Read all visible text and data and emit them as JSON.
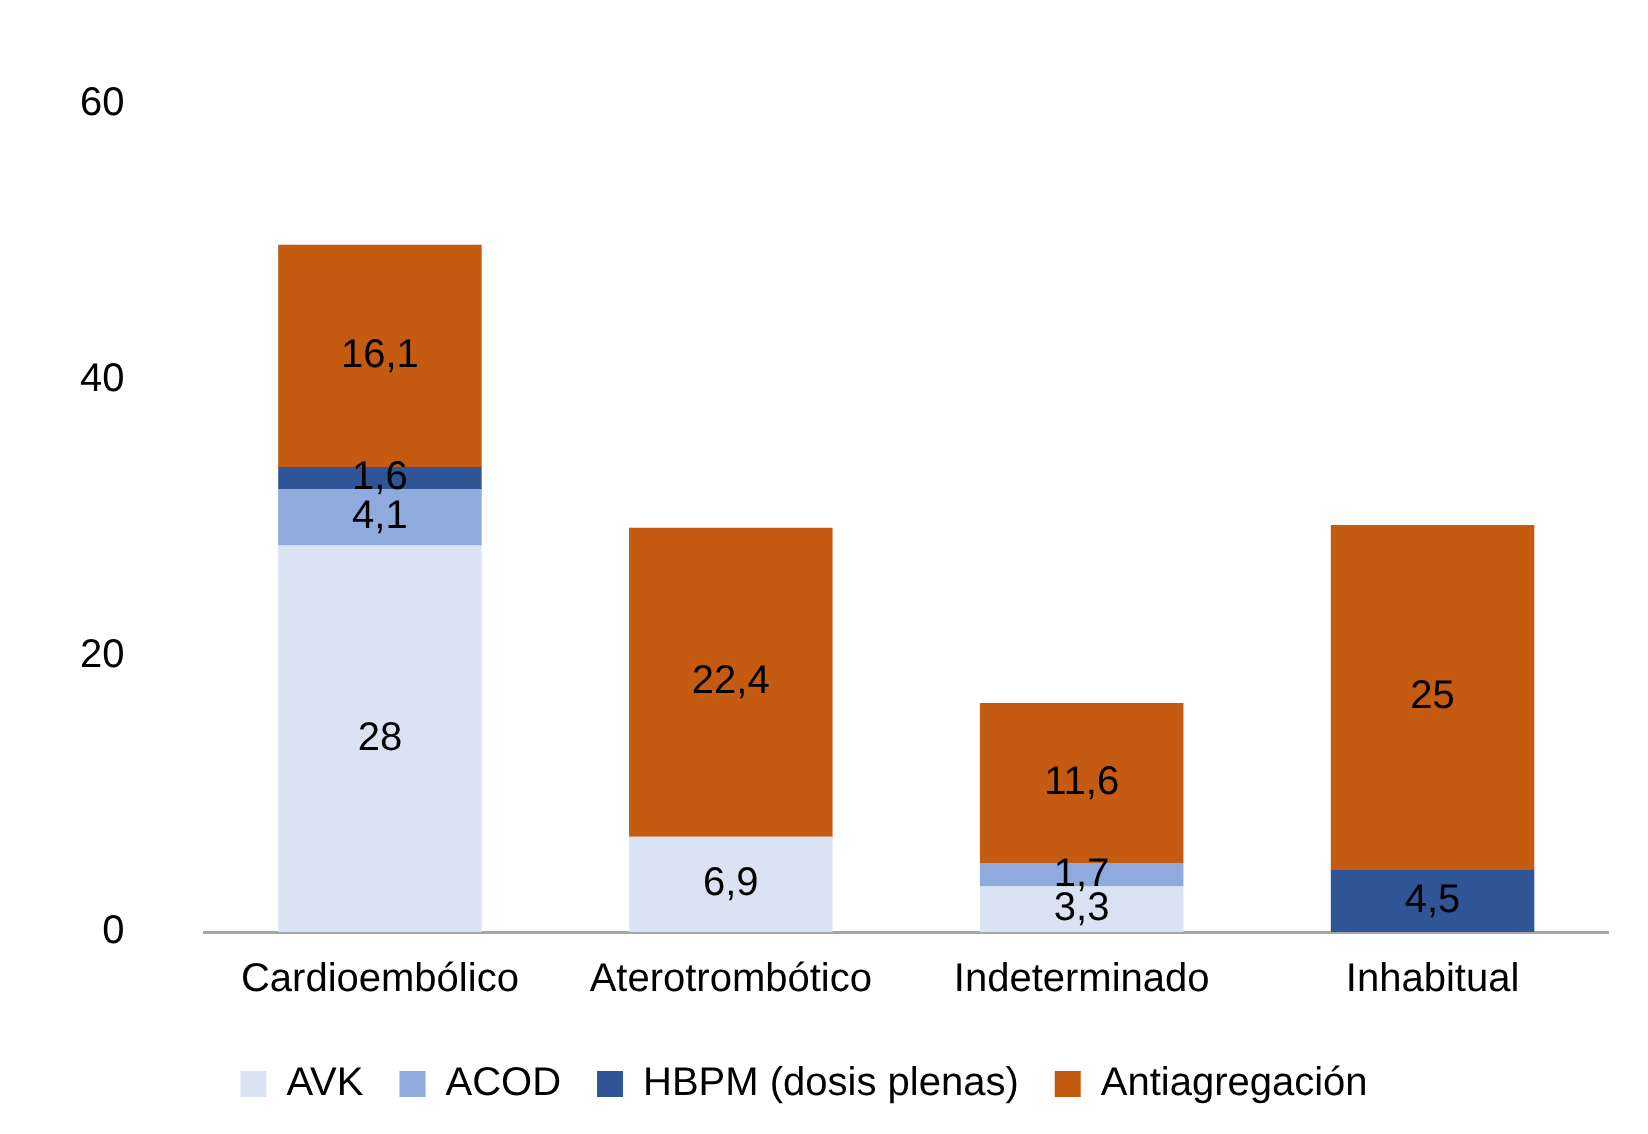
{
  "chart_data": {
    "type": "bar",
    "stacked": true,
    "legend": "bottom",
    "categories": [
      "Cardioembólico",
      "Aterotrombótico",
      "Indeterminado",
      "Inhabitual"
    ],
    "ylim": [
      0,
      60
    ],
    "yticks": [
      0,
      20,
      40,
      60
    ],
    "series": [
      {
        "name": "AVK",
        "color": "#dae3f3",
        "values": [
          28,
          6.9,
          3.3,
          null
        ],
        "value_labels": [
          "28",
          "6,9",
          "3,3",
          null
        ]
      },
      {
        "name": "ACOD",
        "color": "#8faadc",
        "values": [
          4.1,
          null,
          1.7,
          null
        ],
        "value_labels": [
          "4,1",
          null,
          "1,7",
          null
        ]
      },
      {
        "name": "HBPM (dosis plenas)",
        "color": "#2f5597",
        "values": [
          1.6,
          null,
          null,
          4.5
        ],
        "value_labels": [
          "1,6",
          null,
          null,
          "4,5"
        ]
      },
      {
        "name": "Antiagregación",
        "color": "#c55a11",
        "values": [
          16.1,
          22.4,
          11.6,
          25
        ],
        "value_labels": [
          "16,1",
          "22,4",
          "11,6",
          "25"
        ]
      }
    ]
  }
}
